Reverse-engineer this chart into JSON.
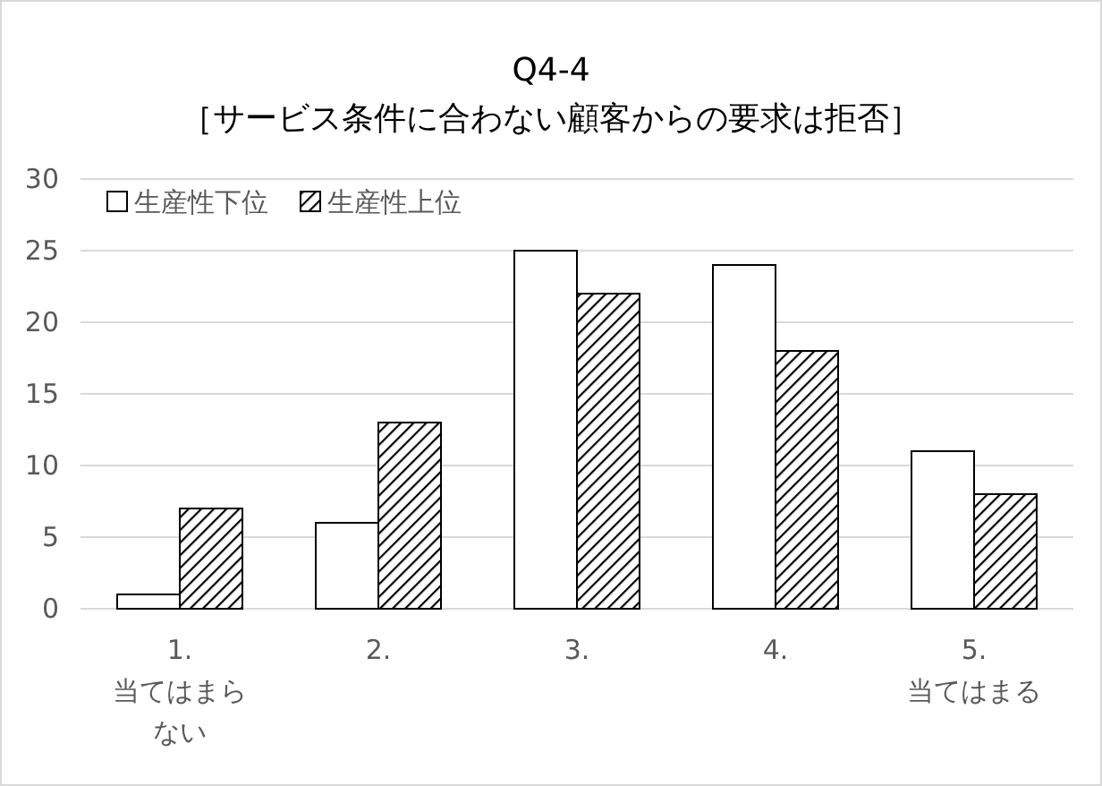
{
  "chart_data": {
    "type": "bar",
    "title": "Q4-4\n［サービス条件に合わない顧客からの要求は拒否］",
    "categories": [
      "1.\n当てはまらない",
      "2.",
      "3.",
      "4.",
      "5.\n当てはまる"
    ],
    "series": [
      {
        "name": "生産性下位",
        "color": "#ffffff",
        "values": [
          1,
          6,
          25,
          24,
          11
        ]
      },
      {
        "name": "生産性上位",
        "color": "#000000",
        "values": [
          7,
          13,
          22,
          18,
          8
        ]
      }
    ],
    "ylim": [
      0,
      30
    ],
    "yticks": [
      0,
      5,
      10,
      15,
      20,
      25,
      30
    ],
    "grid": "y",
    "legend": "top left"
  }
}
